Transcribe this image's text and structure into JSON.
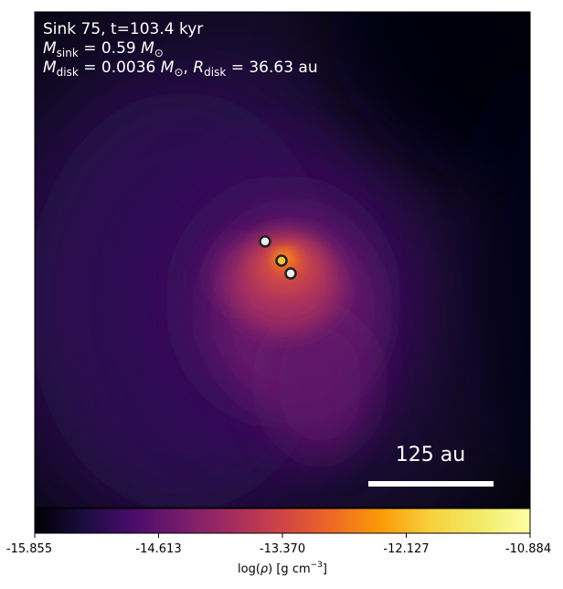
{
  "panel": {
    "title": "Sink 75, t=103.4 kyr",
    "line2": {
      "symbol": "M",
      "sub": "sink",
      "equals": " = 0.59 ",
      "unit_symbol": "M",
      "unit_sub": "⊙"
    },
    "line3": {
      "symbol": "M",
      "sub": "disk",
      "equals": " = 0.0036 ",
      "unit_symbol": "M",
      "unit_sub": "⊙",
      "sep": ", ",
      "symbol2": "R",
      "sub2": "disk",
      "equals2": " = 36.63 ",
      "unit2": "au"
    }
  },
  "scalebar": {
    "label": "125 au",
    "length_value": 125
  },
  "colorbar": {
    "colormap": "inferno",
    "vmin": -15.855,
    "vmax": -10.884,
    "ticks": [
      "-15.855",
      "-14.613",
      "-13.370",
      "-12.127",
      "-10.884"
    ],
    "label_prefix": "log(",
    "label_rho": "ρ",
    "label_suffix": ") [g cm",
    "label_exp": "−3",
    "label_close": "]"
  },
  "sinks": [
    {
      "name": "sink-a",
      "face": "#f4ecf2"
    },
    {
      "name": "sink-b",
      "face": "#f7c542"
    },
    {
      "name": "sink-c",
      "face": "#f4ecf2"
    }
  ],
  "colors": {
    "background": "#060410",
    "marker_edge": "#202020",
    "text": "#ffffff"
  }
}
